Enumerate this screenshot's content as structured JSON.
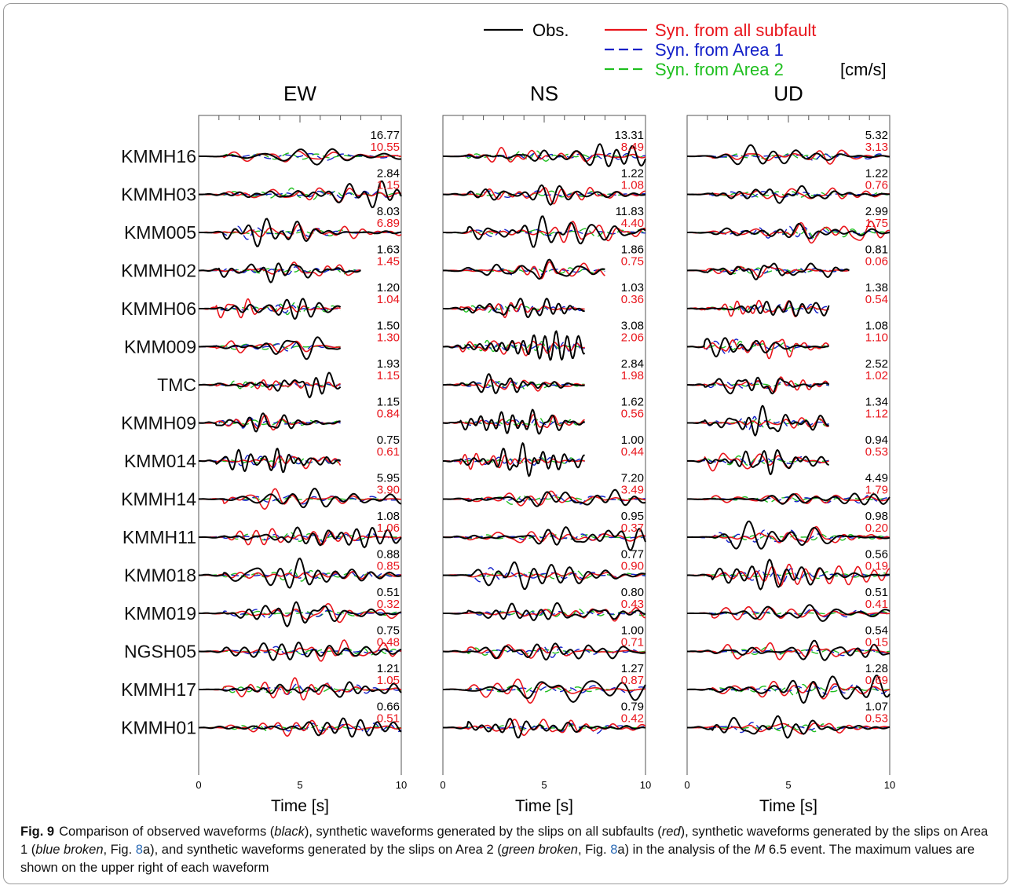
{
  "legend": {
    "items": [
      {
        "label": "Obs.",
        "color": "#000000",
        "dash": "solid"
      },
      {
        "label": "Syn. from all subfault",
        "color": "#e8141b",
        "dash": "solid"
      },
      {
        "label": "Syn. from Area 1",
        "color": "#1420c8",
        "dash": "dashed"
      },
      {
        "label": "Syn. from Area 2",
        "color": "#1fbf1f",
        "dash": "dashed"
      }
    ],
    "unit": "[cm/s]"
  },
  "colors": {
    "obs": "#000000",
    "syn_all": "#e8141b",
    "area1": "#1420c8",
    "area2": "#1fbf1f"
  },
  "chart_data": {
    "type": "line",
    "description_of_values": "Peak velocity amplitudes [cm/s]: obs (black) and synthetic from all subfaults (red) printed at upper right of each trace",
    "xlabel": "Time [s]",
    "xlim": [
      0,
      10
    ],
    "xticks": [
      0,
      5,
      10
    ],
    "components": [
      "EW",
      "NS",
      "UD"
    ],
    "stations": [
      {
        "name": "KMMH16",
        "EW": {
          "obs": "16.77",
          "syn": "10.55",
          "end": 10
        },
        "NS": {
          "obs": "13.31",
          "syn": "8.49",
          "end": 10
        },
        "UD": {
          "obs": "5.32",
          "syn": "3.13",
          "end": 10
        }
      },
      {
        "name": "KMMH03",
        "EW": {
          "obs": "2.84",
          "syn": "1.15",
          "end": 10
        },
        "NS": {
          "obs": "1.22",
          "syn": "1.08",
          "end": 10
        },
        "UD": {
          "obs": "1.22",
          "syn": "0.76",
          "end": 10
        }
      },
      {
        "name": "KMM005",
        "EW": {
          "obs": "8.03",
          "syn": "6.89",
          "end": 10
        },
        "NS": {
          "obs": "11.83",
          "syn": "4.40",
          "end": 10
        },
        "UD": {
          "obs": "2.99",
          "syn": "1.75",
          "end": 10
        }
      },
      {
        "name": "KMMH02",
        "EW": {
          "obs": "1.63",
          "syn": "1.45",
          "end": 8
        },
        "NS": {
          "obs": "1.86",
          "syn": "0.75",
          "end": 8
        },
        "UD": {
          "obs": "0.81",
          "syn": "0.06",
          "end": 8
        }
      },
      {
        "name": "KMMH06",
        "EW": {
          "obs": "1.20",
          "syn": "1.04",
          "end": 7
        },
        "NS": {
          "obs": "1.03",
          "syn": "0.36",
          "end": 7
        },
        "UD": {
          "obs": "1.38",
          "syn": "0.54",
          "end": 7
        }
      },
      {
        "name": "KMM009",
        "EW": {
          "obs": "1.50",
          "syn": "1.30",
          "end": 7
        },
        "NS": {
          "obs": "3.08",
          "syn": "2.06",
          "end": 7
        },
        "UD": {
          "obs": "1.08",
          "syn": "1.10",
          "end": 7
        }
      },
      {
        "name": "TMC",
        "EW": {
          "obs": "1.93",
          "syn": "1.15",
          "end": 7
        },
        "NS": {
          "obs": "2.84",
          "syn": "1.98",
          "end": 7
        },
        "UD": {
          "obs": "2.52",
          "syn": "1.02",
          "end": 7
        }
      },
      {
        "name": "KMMH09",
        "EW": {
          "obs": "1.15",
          "syn": "0.84",
          "end": 7
        },
        "NS": {
          "obs": "1.62",
          "syn": "0.56",
          "end": 7
        },
        "UD": {
          "obs": "1.34",
          "syn": "1.12",
          "end": 7
        }
      },
      {
        "name": "KMM014",
        "EW": {
          "obs": "0.75",
          "syn": "0.61",
          "end": 7
        },
        "NS": {
          "obs": "1.00",
          "syn": "0.44",
          "end": 7
        },
        "UD": {
          "obs": "0.94",
          "syn": "0.53",
          "end": 7
        }
      },
      {
        "name": "KMMH14",
        "EW": {
          "obs": "5.95",
          "syn": "3.90",
          "end": 10
        },
        "NS": {
          "obs": "7.20",
          "syn": "3.49",
          "end": 10
        },
        "UD": {
          "obs": "4.49",
          "syn": "1.79",
          "end": 10
        }
      },
      {
        "name": "KMMH11",
        "EW": {
          "obs": "1.08",
          "syn": "1.06",
          "end": 10
        },
        "NS": {
          "obs": "0.95",
          "syn": "0.37",
          "end": 10
        },
        "UD": {
          "obs": "0.98",
          "syn": "0.20",
          "end": 10
        }
      },
      {
        "name": "KMM018",
        "EW": {
          "obs": "0.88",
          "syn": "0.85",
          "end": 10
        },
        "NS": {
          "obs": "0.77",
          "syn": "0.90",
          "end": 10
        },
        "UD": {
          "obs": "0.56",
          "syn": "0.19",
          "end": 10
        }
      },
      {
        "name": "KMM019",
        "EW": {
          "obs": "0.51",
          "syn": "0.32",
          "end": 10
        },
        "NS": {
          "obs": "0.80",
          "syn": "0.43",
          "end": 10
        },
        "UD": {
          "obs": "0.51",
          "syn": "0.41",
          "end": 10
        }
      },
      {
        "name": "NGSH05",
        "EW": {
          "obs": "0.75",
          "syn": "0.48",
          "end": 10
        },
        "NS": {
          "obs": "1.00",
          "syn": "0.71",
          "end": 10
        },
        "UD": {
          "obs": "0.54",
          "syn": "0.15",
          "end": 10
        }
      },
      {
        "name": "KMMH17",
        "EW": {
          "obs": "1.21",
          "syn": "1.05",
          "end": 10
        },
        "NS": {
          "obs": "1.27",
          "syn": "0.87",
          "end": 10
        },
        "UD": {
          "obs": "1.28",
          "syn": "0.69",
          "end": 10
        }
      },
      {
        "name": "KMMH01",
        "EW": {
          "obs": "0.66",
          "syn": "0.51",
          "end": 10
        },
        "NS": {
          "obs": "0.79",
          "syn": "0.42",
          "end": 10
        },
        "UD": {
          "obs": "1.07",
          "syn": "0.53",
          "end": 10
        }
      }
    ]
  },
  "caption": {
    "label": "Fig. 9",
    "t1": "Comparison of observed waveforms (",
    "black": "black",
    "t2": "), synthetic waveforms generated by the slips on all subfaults (",
    "red": "red",
    "t3": "), synthetic waveforms generated by the slips on Area 1 (",
    "blue_broken": "blue broken",
    "t4": ", Fig. ",
    "ref1": "8",
    "t5": "a), and synthetic waveforms generated by the slips on Area 2 (",
    "green_broken": "green broken",
    "t6": ", Fig. ",
    "ref2": "8",
    "t7": "a) in the analysis of the ",
    "m": "M",
    "t8": " 6.5 event. The maximum values are shown on the upper right of each waveform"
  }
}
